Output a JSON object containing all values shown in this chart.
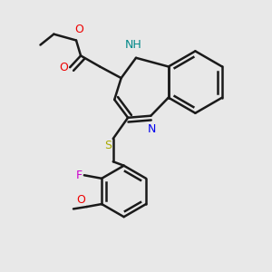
{
  "background_color": "#e8e8e8",
  "bond_color": "#1a1a1a",
  "bond_width": 1.8,
  "atoms": {
    "NH": {
      "label": "NH",
      "color": "#008888"
    },
    "N": {
      "label": "N",
      "color": "#0000ee"
    },
    "S": {
      "label": "S",
      "color": "#aaaa00"
    },
    "O_carbonyl": {
      "label": "O",
      "color": "#ee0000"
    },
    "O_ester": {
      "label": "O",
      "color": "#ee0000"
    },
    "F": {
      "label": "F",
      "color": "#cc00cc"
    },
    "O_methoxy": {
      "label": "O",
      "color": "#ee0000"
    }
  },
  "fontsize": 8.5
}
